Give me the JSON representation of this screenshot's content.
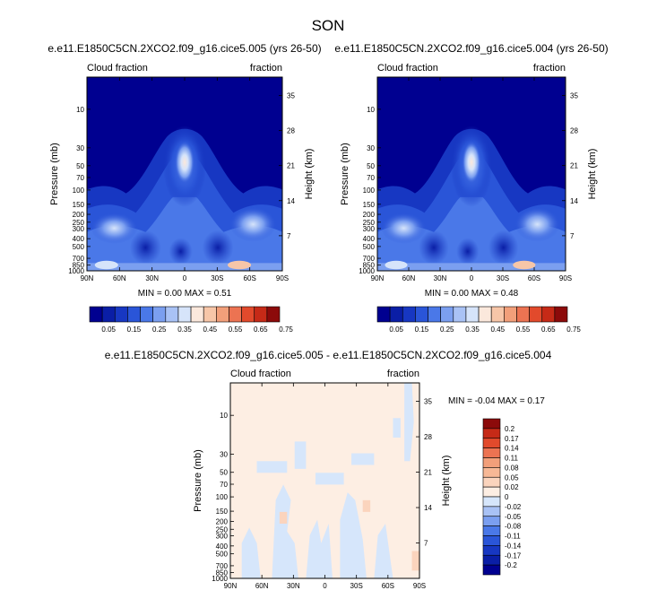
{
  "title": "SON",
  "panels": [
    {
      "id": "top-left",
      "title": "e.e11.E1850C5CN.2XCO2.f09_g16.cice5.005 (yrs 26-50)",
      "left_label": "Cloud fraction",
      "right_label": "fraction",
      "ylabel": "Pressure (mb)",
      "y2label": "Height (km)",
      "minmax": "MIN =  0.00  MAX =  0.51",
      "colorbar_type": "horizontal"
    },
    {
      "id": "top-right",
      "title": "e.e11.E1850C5CN.2XCO2.f09_g16.cice5.004 (yrs 26-50)",
      "left_label": "Cloud fraction",
      "right_label": "fraction",
      "ylabel": "Pressure (mb)",
      "y2label": "Height (km)",
      "minmax": "MIN =  0.00  MAX =  0.48",
      "colorbar_type": "horizontal"
    },
    {
      "id": "bottom",
      "title": "e.e11.E1850C5CN.2XCO2.f09_g16.cice5.005 - e.e11.E1850C5CN.2XCO2.f09_g16.cice5.004",
      "left_label": "Cloud fraction",
      "right_label": "fraction",
      "ylabel": "Pressure (mb)",
      "y2label": "Height (km)",
      "minmax": "MIN = -0.04  MAX =  0.17",
      "colorbar_type": "vertical"
    }
  ],
  "chart_data": {
    "type": "heatmap",
    "x_ticks": [
      "90N",
      "60N",
      "30N",
      "0",
      "30S",
      "60S",
      "90S"
    ],
    "x_tick_lat": [
      90,
      60,
      30,
      0,
      -30,
      -60,
      -90
    ],
    "y_ticks": [
      "10",
      "30",
      "50",
      "70",
      "100",
      "150",
      "200",
      "250",
      "300",
      "400",
      "500",
      "700",
      "850",
      "1000"
    ],
    "y_tick_p": [
      10,
      30,
      50,
      70,
      100,
      150,
      200,
      250,
      300,
      400,
      500,
      700,
      850,
      1000
    ],
    "y2_ticks": [
      "35",
      "28",
      "21",
      "14",
      "7"
    ],
    "y2_tick_km": [
      35,
      28,
      21,
      14,
      7
    ],
    "p_range": [
      1000,
      4
    ],
    "colorbar_abs": {
      "labels": [
        "0.05",
        "0.15",
        "0.25",
        "0.35",
        "0.45",
        "0.55",
        "0.65",
        "0.75"
      ],
      "colors": [
        "#000090",
        "#0a1ea6",
        "#1737c2",
        "#2a55d8",
        "#4a78e8",
        "#7b9ff0",
        "#a9c2f5",
        "#d6e4fa",
        "#fbe8dc",
        "#f7c6a8",
        "#f29f7a",
        "#ec7352",
        "#e24a2c",
        "#c62a17",
        "#8c0a0a"
      ]
    },
    "colorbar_diff": {
      "labels": [
        "0.2",
        "0.17",
        "0.14",
        "0.11",
        "0.08",
        "0.05",
        "0.02",
        "0",
        "-0.02",
        "-0.05",
        "-0.08",
        "-0.11",
        "-0.14",
        "-0.17",
        "-0.2"
      ],
      "colors": [
        "#8c0a0a",
        "#c62a17",
        "#e24a2c",
        "#ec7352",
        "#f29f7a",
        "#f7b896",
        "#fbd4bd",
        "#fdeee3",
        "#d6e6fb",
        "#a9c2f5",
        "#7b9ff0",
        "#4a78e8",
        "#2a55d8",
        "#1737c2",
        "#0a1ea6",
        "#000090"
      ]
    }
  }
}
